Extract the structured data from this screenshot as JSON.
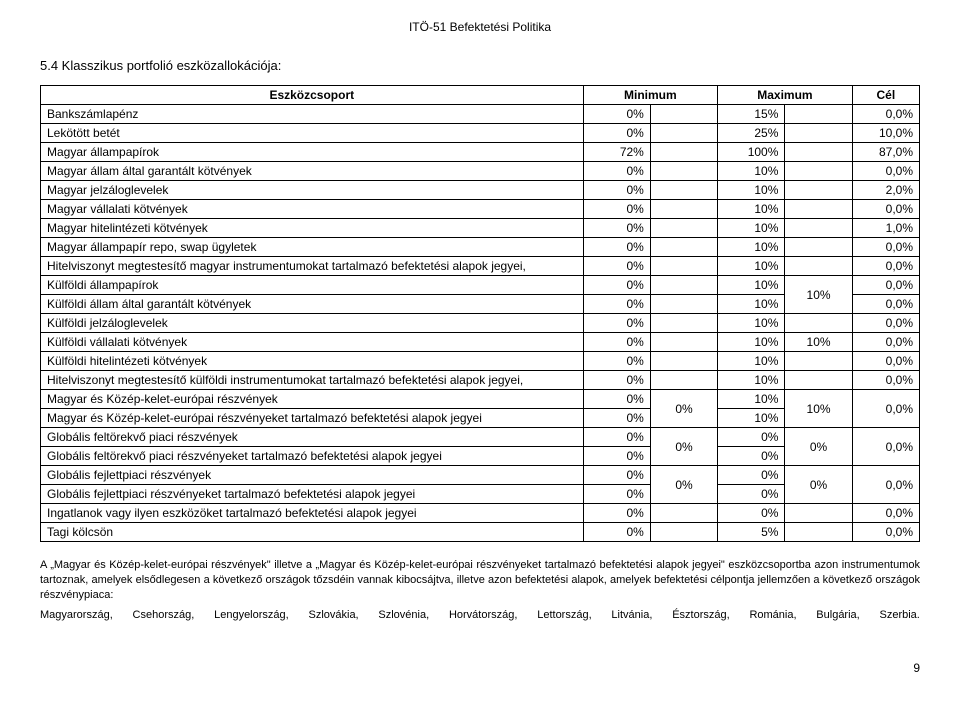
{
  "header": "ITÖ-51 Befektetési Politika",
  "section_title": "5.4 Klasszikus portfolió eszközallokációja:",
  "table": {
    "headers": {
      "c1": "Eszközcsoport",
      "c2": "Minimum",
      "c3": "Maximum",
      "c4": "Cél"
    }
  },
  "rows": {
    "r1": {
      "label": "Bankszámlapénz",
      "min": "0%",
      "midA": "",
      "max": "15%",
      "midB": "",
      "cel": "0,0%"
    },
    "r2": {
      "label": "Lekötött betét",
      "min": "0%",
      "midA": "",
      "max": "25%",
      "midB": "",
      "cel": "10,0%"
    },
    "r3": {
      "label": "Magyar állampapírok",
      "min": "72%",
      "midA": "",
      "max": "100%",
      "midB": "",
      "cel": "87,0%"
    },
    "r4": {
      "label": "Magyar állam által garantált kötvények",
      "min": "0%",
      "midA": "",
      "max": "10%",
      "midB": "",
      "cel": "0,0%"
    },
    "r5": {
      "label": "Magyar jelzáloglevelek",
      "min": "0%",
      "midA": "",
      "max": "10%",
      "midB": "",
      "cel": "2,0%"
    },
    "r6": {
      "label": "Magyar vállalati kötvények",
      "min": "0%",
      "midA": "",
      "max": "10%",
      "midB": "",
      "cel": "0,0%"
    },
    "r7": {
      "label": "Magyar hitelintézeti kötvények",
      "min": "0%",
      "midA": "",
      "max": "10%",
      "midB": "",
      "cel": "1,0%"
    },
    "r8": {
      "label": "Magyar állampapír repo, swap ügyletek",
      "min": "0%",
      "midA": "",
      "max": "10%",
      "midB": "",
      "cel": "0,0%"
    },
    "r9": {
      "label": "Hitelviszonyt megtestesítő magyar instrumentumokat tartalmazó befektetési alapok jegyei,",
      "min": "0%",
      "midA": "",
      "max": "10%",
      "midB": "",
      "cel": "0,0%"
    },
    "r10": {
      "label": "Külföldi állampapírok",
      "min": "0%",
      "max": "10%",
      "cel": "0,0%"
    },
    "r11": {
      "label": "Külföldi állam által garantált kötvények",
      "min": "0%",
      "max": "10%",
      "cel": "0,0%"
    },
    "mergeB1": "10%",
    "r12": {
      "label": "Külföldi jelzáloglevelek",
      "min": "0%",
      "midA": "",
      "max": "10%",
      "midB": "",
      "cel": "0,0%"
    },
    "r13": {
      "label": "Külföldi vállalati kötvények",
      "min": "0%",
      "midA": "",
      "max": "10%",
      "midB": "10%",
      "cel": "0,0%"
    },
    "r14": {
      "label": "Külföldi hitelintézeti kötvények",
      "min": "0%",
      "midA": "",
      "max": "10%",
      "midB": "",
      "cel": "0,0%"
    },
    "r15": {
      "label": "Hitelviszonyt megtestesítő külföldi instrumentumokat tartalmazó befektetési alapok jegyei,",
      "min": "0%",
      "midA": "",
      "max": "10%",
      "midB": "",
      "cel": "0,0%"
    },
    "r16": {
      "label": "Magyar és Közép-kelet-európai részvények",
      "min": "0%",
      "max": "10%"
    },
    "r17": {
      "label": "Magyar és Közép-kelet-európai részvényeket tartalmazó befektetési alapok jegyei",
      "min": "0%",
      "max": "10%"
    },
    "mergeA2": "0%",
    "mergeB2": "10%",
    "mergeC2": "0,0%",
    "r18": {
      "label": "Globális feltörekvő piaci részvények",
      "min": "0%",
      "max": "0%"
    },
    "r19": {
      "label": "Globális feltörekvő piaci részvényeket tartalmazó befektetési alapok jegyei",
      "min": "0%",
      "max": "0%"
    },
    "mergeA3": "0%",
    "mergeB3": "0%",
    "mergeC3": "0,0%",
    "r20": {
      "label": "Globális fejlettpiaci részvények",
      "min": "0%",
      "max": "0%"
    },
    "r21": {
      "label": "Globális fejlettpiaci részvényeket tartalmazó befektetési alapok jegyei",
      "min": "0%",
      "max": "0%"
    },
    "mergeA4": "0%",
    "mergeB4": "0%",
    "mergeC4": "0,0%",
    "r22": {
      "label": "Ingatlanok vagy ilyen eszközöket tartalmazó befektetési alapok jegyei",
      "min": "0%",
      "midA": "",
      "max": "0%",
      "midB": "",
      "cel": "0,0%"
    },
    "r23": {
      "label": "Tagi kölcsön",
      "min": "0%",
      "midA": "",
      "max": "5%",
      "midB": "",
      "cel": "0,0%"
    }
  },
  "paragraph": "A „Magyar és Közép-kelet-európai részvények\" illetve a „Magyar és Közép-kelet-európai részvényeket tartalmazó befektetési alapok jegyei\" eszközcsoportba azon instrumentumok tartoznak, amelyek elsődlegesen a következő országok tőzsdéin vannak kibocsájtva, illetve azon befektetési alapok, amelyek befektetési célpontja jellemzően a következő országok részvénypiaca:",
  "countries": {
    "c1": "Magyarország,",
    "c2": "Csehország,",
    "c3": "Lengyelország,",
    "c4": "Szlovákia,",
    "c5": "Szlovénia,",
    "c6": "Horvátország,",
    "c7": "Lettország,",
    "c8": "Litvánia,",
    "c9": "Észtország,",
    "c10": "Románia,",
    "c11": "Bulgária,",
    "c12": "Szerbia."
  },
  "page_number": "9"
}
